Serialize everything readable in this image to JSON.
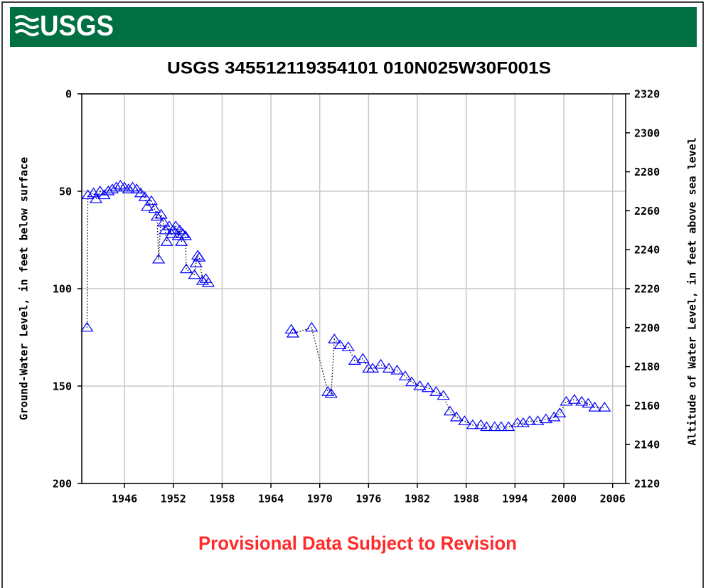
{
  "chart_data": {
    "type": "line",
    "logo": "USGS",
    "title": "USGS 345512119354101 010N025W30F001S",
    "y_label": "Ground-Water Level, in feet below surface",
    "y2_label": "Altitude of Water Level, in feet above sea level",
    "annotation": "Provisional Data Subject to Revision",
    "color": "#0000ff",
    "line_color": "#000000",
    "grid": true,
    "xlim": [
      1940.75,
      2007.6
    ],
    "xticks": [
      1946,
      1952,
      1958,
      1964,
      1970,
      1976,
      1982,
      1988,
      1994,
      2000,
      2006
    ],
    "ylim": [
      200,
      0
    ],
    "yticks": [
      0,
      50,
      100,
      150,
      200
    ],
    "y2lim": [
      2120,
      2320
    ],
    "y2ticks": [
      2120,
      2140,
      2160,
      2180,
      2200,
      2220,
      2240,
      2260,
      2280,
      2300,
      2320
    ],
    "x": [
      1941.4,
      1941.5,
      1942.2,
      1942.5,
      1943,
      1943.5,
      1944,
      1944.5,
      1945,
      1945.5,
      1946,
      1946.5,
      1947,
      1947.5,
      1948,
      1948.5,
      1948.8,
      1949.3,
      1949.7,
      1950,
      1950.2,
      1950.5,
      1950.8,
      1951,
      1951.2,
      1951.5,
      1951.8,
      1952,
      1952.3,
      1952.6,
      1952.8,
      1953,
      1953.2,
      1953.5,
      1953.6,
      1954.6,
      1954.8,
      1955,
      1955.2,
      1955.6,
      1956,
      1956.3,
      1961,
      1966.5,
      1966.7,
      1969,
      1971,
      1971.4,
      1971.8,
      1972.5,
      1973.5,
      1974.3,
      1975.3,
      1976,
      1976.5,
      1977.5,
      1978.5,
      1979.5,
      1980.5,
      1981.3,
      1982.3,
      1983.3,
      1984.3,
      1985.2,
      1986,
      1986.8,
      1987.8,
      1988.8,
      1989.8,
      1990.5,
      1991.5,
      1992.3,
      1993.2,
      1994.3,
      1995,
      1995.8,
      1996.8,
      1997.8,
      1998.8,
      1999.5,
      2000.3,
      2001.3,
      2002.2,
      2003,
      2003.8,
      2005
    ],
    "values": [
      120,
      52,
      51,
      54,
      50,
      52,
      50,
      49,
      48,
      47,
      48,
      49,
      48,
      49,
      51,
      53,
      58,
      55,
      59,
      63,
      85,
      62,
      66,
      70,
      76,
      68,
      72,
      70,
      68,
      73,
      70,
      76,
      72,
      73,
      90,
      93,
      87,
      83,
      84,
      96,
      95,
      97,
      null,
      121,
      123,
      120,
      153,
      154,
      126,
      129,
      130,
      137,
      136,
      141,
      141,
      139,
      141,
      142,
      145,
      148,
      150,
      151,
      153,
      155,
      163,
      166,
      168,
      170,
      170,
      171,
      171,
      171,
      171,
      169,
      169,
      168,
      168,
      167,
      166,
      164,
      158,
      157,
      158,
      159,
      161,
      161
    ]
  }
}
